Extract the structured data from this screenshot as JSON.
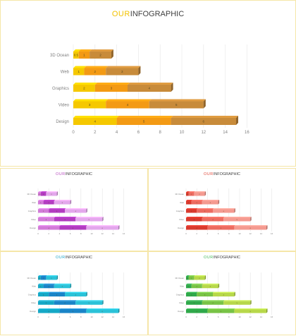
{
  "title_accent": "OUR",
  "title_rest": "INFOGRAPHIC",
  "chart_data": {
    "type": "bar",
    "orientation": "horizontal",
    "stacked": true,
    "categories": [
      "Design",
      "Video",
      "Graphics",
      "Web",
      "3D Ocean"
    ],
    "series": [
      {
        "values": [
          4,
          3,
          2,
          1,
          0.5
        ]
      },
      {
        "values": [
          5,
          4,
          3,
          2,
          1
        ]
      },
      {
        "values": [
          6,
          5,
          4,
          3,
          2
        ]
      }
    ],
    "xticks": [
      0,
      2,
      4,
      6,
      8,
      10,
      12,
      14,
      16
    ],
    "xlim": [
      0,
      16
    ],
    "grid": true
  },
  "themes": [
    {
      "accent": "#f2c200",
      "colors": [
        "#f5c800",
        "#f39a14",
        "#c88b3a"
      ]
    },
    {
      "accent": "#b84fc0",
      "colors": [
        "#d27ad8",
        "#b23cc0",
        "#e3a7ec"
      ]
    },
    {
      "accent": "#e04a3c",
      "colors": [
        "#d93a2e",
        "#ec6b60",
        "#f49a90"
      ]
    },
    {
      "accent": "#1aa3c8",
      "colors": [
        "#15a8c6",
        "#1a84c7",
        "#2bc2d8"
      ]
    },
    {
      "accent": "#45b85a",
      "colors": [
        "#2fa84a",
        "#78c346",
        "#b7d84a"
      ]
    }
  ]
}
